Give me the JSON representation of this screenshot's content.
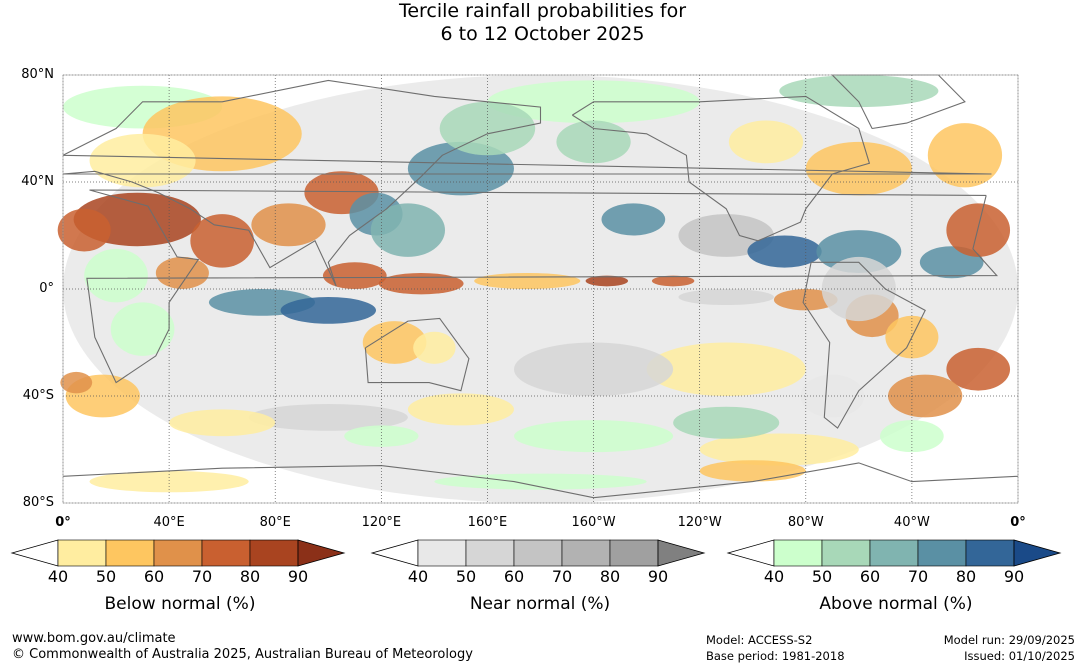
{
  "title": {
    "line1": "Tercile rainfall probabilities for",
    "line2": "6 to 12 October 2025"
  },
  "map": {
    "lat_labels": [
      "80°N",
      "40°N",
      "0°",
      "40°S",
      "80°S"
    ],
    "lon_labels": [
      "0°",
      "40°E",
      "80°E",
      "120°E",
      "160°E",
      "160°W",
      "120°W",
      "80°W",
      "40°W",
      "0°"
    ],
    "colors": {
      "ocean_background": "#ffffff",
      "grid_line": "#555555",
      "coastline": "#6e6e6e"
    }
  },
  "legends": [
    {
      "label": "Below normal (%)",
      "ticks": [
        "40",
        "50",
        "60",
        "70",
        "80",
        "90"
      ],
      "colors": [
        "#ffffff",
        "#ffeda0",
        "#fec660",
        "#e0914a",
        "#c96030",
        "#a94420",
        "#8b3018"
      ]
    },
    {
      "label": "Near normal (%)",
      "ticks": [
        "40",
        "50",
        "60",
        "70",
        "80",
        "90"
      ],
      "colors": [
        "#ffffff",
        "#e8e8e8",
        "#d6d6d6",
        "#c4c4c4",
        "#b2b2b2",
        "#a0a0a0",
        "#808080"
      ]
    },
    {
      "label": "Above normal (%)",
      "ticks": [
        "40",
        "50",
        "60",
        "70",
        "80",
        "90"
      ],
      "colors": [
        "#ffffff",
        "#ccffcc",
        "#a8d8b8",
        "#80b4b0",
        "#5a90a4",
        "#336698",
        "#1a4a88"
      ]
    }
  ],
  "footer": {
    "website": "www.bom.gov.au/climate",
    "copyright": "© Commonwealth of Australia 2025, Australian Bureau of Meteorology",
    "model": "Model: ACCESS-S2",
    "base_period": "Base period: 1981-2018",
    "model_run": "Model run: 29/09/2025",
    "issued": "Issued: 01/10/2025"
  }
}
